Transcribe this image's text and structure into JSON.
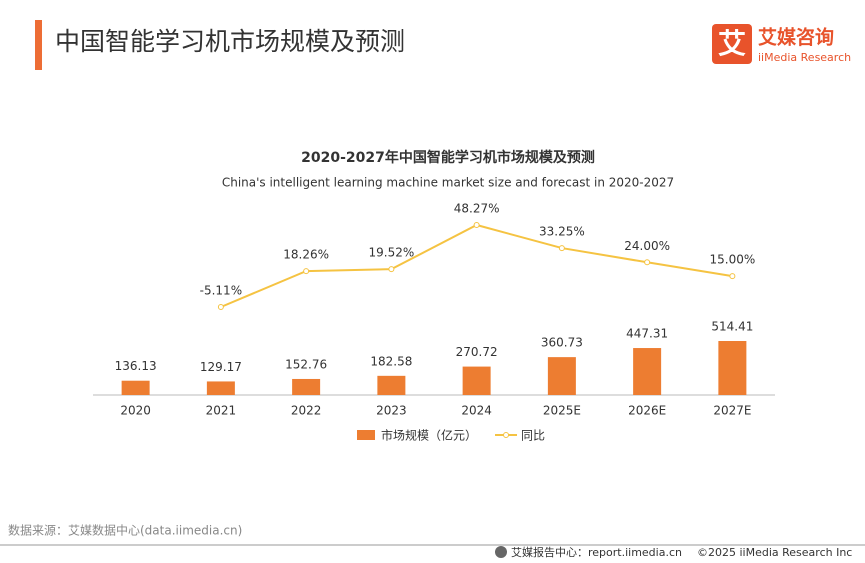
{
  "header": {
    "title": "中国智能学习机市场规模及预测",
    "logo_icon": "艾",
    "logo_name": "艾媒咨询",
    "logo_sub": "iiMedia Research"
  },
  "chart_data": {
    "type": "bar",
    "title": "2020-2027年中国智能学习机市场规模及预测",
    "subtitle": "China's intelligent learning machine market size and forecast in 2020-2027",
    "categories": [
      "2020",
      "2021",
      "2022",
      "2023",
      "2024",
      "2025E",
      "2026E",
      "2027E"
    ],
    "series": [
      {
        "name": "市场规模（亿元）",
        "type": "bar",
        "color": "#ed7d31",
        "values": [
          136.13,
          129.17,
          152.76,
          182.58,
          270.72,
          360.73,
          447.31,
          514.41
        ]
      },
      {
        "name": "同比",
        "type": "line",
        "axis": "y2",
        "color": "#f5c342",
        "values": [
          null,
          -5.11,
          18.26,
          19.52,
          48.27,
          33.25,
          24.0,
          15.0
        ],
        "value_labels": [
          null,
          "-5.11%",
          "18.26%",
          "19.52%",
          "48.27%",
          "33.25%",
          "24.00%",
          "15.00%"
        ]
      }
    ],
    "legend": "bottom"
  },
  "footer": {
    "source": "数据来源：艾媒数据中心(data.iimedia.cn)",
    "report": "艾媒报告中心：report.iimedia.cn",
    "copyright": "©2025  iiMedia Research  Inc"
  }
}
